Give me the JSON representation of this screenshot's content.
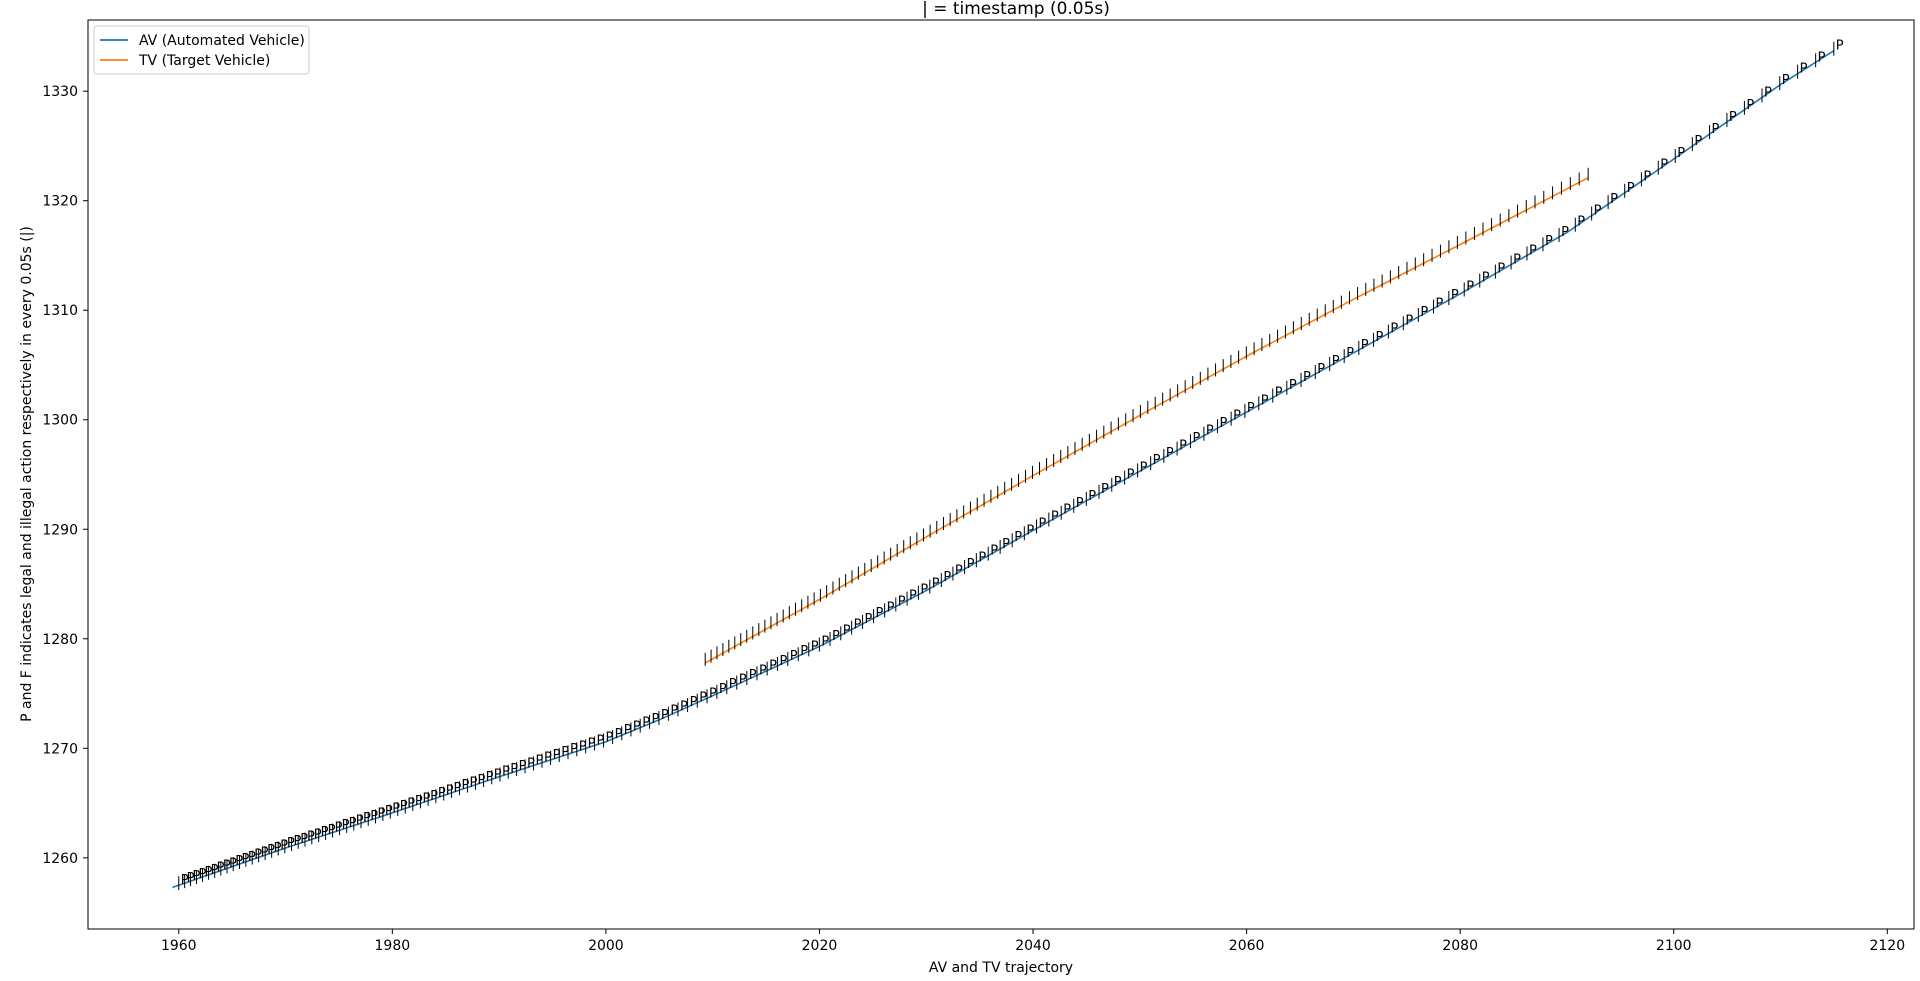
{
  "chart_data": {
    "type": "line",
    "title": "| = timestamp (0.05s)",
    "xlabel": "AV and TV trajectory",
    "ylabel": "P and F indicates legal and illegal action respectively in every 0.05s (|)",
    "xlim": [
      1951.5,
      2122.5
    ],
    "ylim": [
      1253.5,
      1336.5
    ],
    "xticks": [
      1960,
      1980,
      2000,
      2020,
      2040,
      2060,
      2080,
      2100,
      2120
    ],
    "yticks": [
      1260,
      1270,
      1280,
      1290,
      1300,
      1310,
      1320,
      1330
    ],
    "legend_position": "top-left",
    "grid": false,
    "timestamp_marker": "|",
    "legal_action_label": "P",
    "series": [
      {
        "name": "AV (Automated Vehicle)",
        "color": "#1f77b4",
        "x": [
          1959.4,
          1960,
          1970,
          1980,
          1990,
          2000,
          2005,
          2010,
          2020,
          2030,
          2040,
          2050,
          2060,
          2070,
          2080,
          2090,
          2100,
          2110,
          2115
        ],
        "y": [
          1257.3,
          1257.5,
          1260.9,
          1264.1,
          1267.4,
          1270.6,
          1272.6,
          1274.8,
          1279.3,
          1284.4,
          1289.9,
          1295.3,
          1300.7,
          1306.1,
          1311.5,
          1317.1,
          1323.8,
          1330.6,
          1333.7
        ],
        "marker_x_range": [
          1960,
          2115
        ]
      },
      {
        "name": "TV (Target Vehicle)",
        "color": "#ff7f0e",
        "x": [
          2009.3,
          2020,
          2030,
          2040,
          2050,
          2060,
          2070,
          2080,
          2092
        ],
        "y": [
          1277.8,
          1283.6,
          1289.3,
          1294.9,
          1300.4,
          1305.8,
          1311.0,
          1316.0,
          1322.1
        ],
        "marker_x_range": [
          2009.3,
          2092
        ]
      }
    ]
  }
}
